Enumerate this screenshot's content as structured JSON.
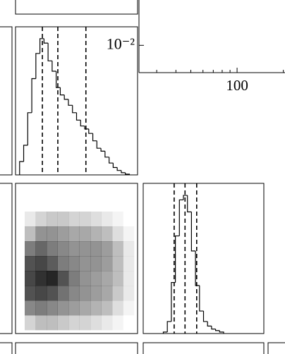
{
  "chart_data": [
    {
      "type": "line",
      "xscale": "log",
      "yscale": "log",
      "xlim": [
        23,
        205
      ],
      "ylim": [
        0.0033,
        0.063
      ],
      "xticks": [
        100
      ],
      "xticks_minor": [
        30,
        40,
        50,
        60,
        70,
        80,
        90,
        200
      ],
      "yticks": [
        {
          "value": 0.01,
          "label": "10⁻²"
        }
      ]
    },
    {
      "type": "histogram",
      "color": "#000000",
      "xlim": [
        0,
        30
      ],
      "ylim": [
        0,
        1
      ],
      "bins": [
        1,
        2,
        3,
        4,
        5,
        6,
        7,
        8,
        9,
        10,
        11,
        12,
        13,
        14,
        15,
        16,
        17,
        18,
        19,
        20,
        21,
        22,
        23,
        24,
        25,
        26,
        27,
        28
      ],
      "counts": [
        0.09,
        0.2,
        0.42,
        0.65,
        0.82,
        0.92,
        0.89,
        0.77,
        0.7,
        0.59,
        0.54,
        0.51,
        0.47,
        0.42,
        0.37,
        0.33,
        0.31,
        0.28,
        0.23,
        0.18,
        0.16,
        0.12,
        0.08,
        0.05,
        0.03,
        0.015,
        0.005
      ],
      "quantiles": [
        6.6,
        10.4,
        17.3
      ]
    },
    {
      "type": "heatmap",
      "color": "#000000",
      "z": [
        [
          0.1,
          0.2,
          0.25,
          0.25,
          0.2,
          0.2,
          0.15,
          0.1,
          0.05,
          0
        ],
        [
          0.3,
          0.5,
          0.5,
          0.45,
          0.4,
          0.4,
          0.35,
          0.3,
          0.15,
          0.05
        ],
        [
          0.6,
          0.7,
          0.6,
          0.55,
          0.5,
          0.5,
          0.5,
          0.45,
          0.3,
          0.1
        ],
        [
          0.8,
          0.85,
          0.75,
          0.6,
          0.55,
          0.5,
          0.5,
          0.45,
          0.3,
          0.1
        ],
        [
          0.85,
          0.95,
          1,
          0.8,
          0.6,
          0.5,
          0.45,
          0.4,
          0.3,
          0.1
        ],
        [
          0.8,
          0.85,
          0.8,
          0.65,
          0.55,
          0.5,
          0.45,
          0.4,
          0.25,
          0.1
        ],
        [
          0.55,
          0.6,
          0.55,
          0.5,
          0.45,
          0.4,
          0.35,
          0.3,
          0.15,
          0.05
        ],
        [
          0.2,
          0.3,
          0.3,
          0.25,
          0.2,
          0.2,
          0.15,
          0.1,
          0.05,
          0
        ]
      ]
    },
    {
      "type": "histogram",
      "color": "#000000",
      "xlim": [
        0,
        30
      ],
      "ylim": [
        0,
        1
      ],
      "bins": [
        5,
        6,
        7,
        8,
        9,
        10,
        11,
        12,
        13,
        14,
        15,
        16,
        17,
        18,
        19,
        20
      ],
      "counts": [
        0.01,
        0.08,
        0.34,
        0.65,
        0.89,
        0.92,
        0.81,
        0.55,
        0.32,
        0.15,
        0.08,
        0.05,
        0.03,
        0.02,
        0.01
      ],
      "quantiles": [
        7.7,
        10.4,
        13.3
      ]
    }
  ]
}
